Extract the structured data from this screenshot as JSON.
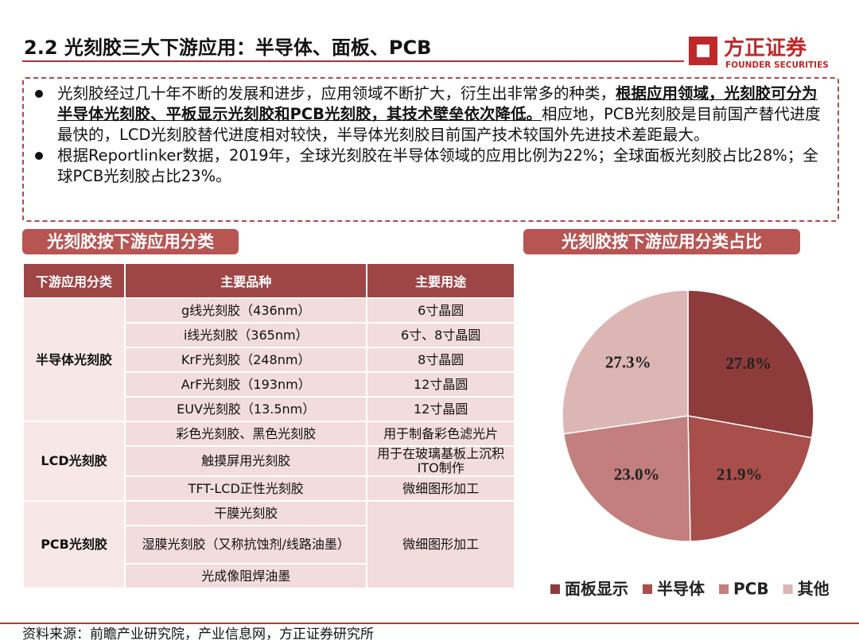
{
  "header": {
    "title": "2.2 光刻胶三大下游应用：半导体、面板、PCB",
    "logo_name": "方正证券",
    "logo_en": "FOUNDER SECURITIES"
  },
  "bullets": [
    {
      "text": "光刻胶经过几十年不断的发展和进步，应用领域不断扩大，衍生出非常多的种类，",
      "emphasis": "根据应用领域，光刻胶可分为半导体光刻胶、平板显示光刻胶和PCB光刻胶，其技术壁垒依次降低。",
      "rest": "相应地，PCB光刻胶是目前国产替代进度最快的，LCD光刻胶替代进度相对较快，半导体光刻胶目前国产技术较国外先进技术差距最大。"
    },
    {
      "text": "根据Reportlinker数据，2019年，全球光刻胶在半导体领域的应用比例为22%；全球面板光刻胶占比28%；全球PCB光刻胶占比23%。"
    }
  ],
  "table": {
    "title": "光刻胶按下游应用分类",
    "header": [
      "下游应用分类",
      "主要品种",
      "主要用途"
    ],
    "groups": [
      {
        "category": "半导体光刻胶",
        "rows": [
          {
            "variety": "g线光刻胶（436nm）",
            "use": "6寸晶圆"
          },
          {
            "variety": "i线光刻胶（365nm）",
            "use": "6寸、8寸晶圆"
          },
          {
            "variety": "KrF光刻胶（248nm）",
            "use": "8寸晶圆"
          },
          {
            "variety": "ArF光刻胶（193nm）",
            "use": "12寸晶圆"
          },
          {
            "variety": "EUV光刻胶（13.5nm）",
            "use": "12寸晶圆"
          }
        ]
      },
      {
        "category": "LCD光刻胶",
        "rows": [
          {
            "variety": "彩色光刻胶、黑色光刻胶",
            "use": "用于制备彩色滤光片"
          },
          {
            "variety": "触摸屏用光刻胶",
            "use": "用于在玻璃基板上沉积ITO制作"
          },
          {
            "variety": "TFT-LCD正性光刻胶",
            "use": "微细图形加工"
          }
        ]
      },
      {
        "category": "PCB光刻胶",
        "varieties": [
          "干膜光刻胶",
          "湿膜光刻胶（又称抗蚀剂/线路油墨）",
          "光成像阻焊油墨"
        ],
        "use": "微细图形加工"
      }
    ]
  },
  "chart_data": {
    "type": "pie",
    "title": "光刻胶按下游应用分类占比",
    "categories": [
      "面板显示",
      "半导体",
      "PCB",
      "其他"
    ],
    "values": [
      27.8,
      21.9,
      23.0,
      27.3
    ],
    "value_labels": [
      "27.8%",
      "21.9%",
      "23.0%",
      "27.3%"
    ],
    "colors": [
      "#8e3b3b",
      "#a84e4b",
      "#c27f7d",
      "#dcb6b4"
    ],
    "legend": "bottom"
  },
  "footer": {
    "source": "资料来源：前瞻产业研究院，产业信息网，方正证券研究所"
  }
}
